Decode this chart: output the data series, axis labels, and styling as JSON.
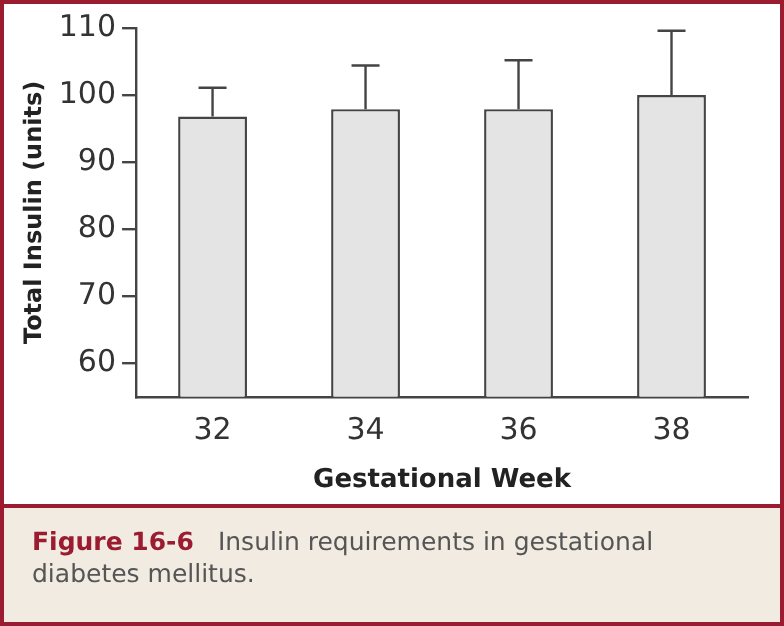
{
  "chart_data": {
    "type": "bar",
    "xlabel": "Gestational Week",
    "ylabel": "Total Insulin (units)",
    "categories": [
      "32",
      "34",
      "36",
      "38"
    ],
    "values": [
      96.8,
      97.9,
      97.9,
      100
    ],
    "errors": [
      [
        96.8,
        101.1
      ],
      [
        97.9,
        104.4
      ],
      [
        97.9,
        105.2
      ],
      [
        100,
        109.6
      ]
    ],
    "color": "#e4e4e4",
    "ylim": [
      55,
      110
    ],
    "yticks": [
      60,
      70,
      80,
      90,
      100,
      110
    ],
    "grid": false,
    "legend": false,
    "annotations": [
      "Figure 16-6",
      "Insulin requirements in gestational diabetes mellitus."
    ]
  }
}
